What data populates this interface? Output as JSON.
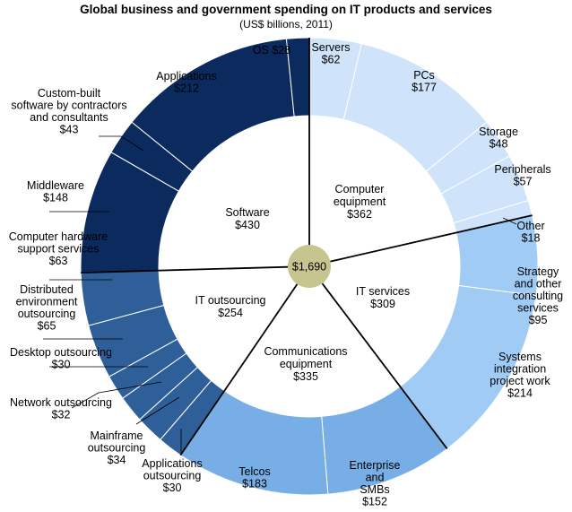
{
  "chart_data": {
    "type": "pie",
    "title": "Global business and government spending on IT products and services",
    "subtitle": "(US$ billions, 2011)",
    "total_label": "$1,690",
    "total": 1690,
    "inner_ring": [
      {
        "name": "Computer equipment",
        "value_label": "$362",
        "value": 362
      },
      {
        "name": "IT services",
        "value_label": "$309",
        "value": 309
      },
      {
        "name": "Communications equipment",
        "value_label": "$335",
        "value": 335
      },
      {
        "name": "IT outsourcing",
        "value_label": "$254",
        "value": 254
      },
      {
        "name": "Software",
        "value_label": "$430",
        "value": 430
      }
    ],
    "outer_ring": [
      {
        "name": "Servers",
        "value_label": "$62",
        "value": 62,
        "group": "Computer equipment"
      },
      {
        "name": "PCs",
        "value_label": "$177",
        "value": 177,
        "group": "Computer equipment"
      },
      {
        "name": "Storage",
        "value_label": "$48",
        "value": 48,
        "group": "Computer equipment"
      },
      {
        "name": "Peripherals",
        "value_label": "$57",
        "value": 57,
        "group": "Computer equipment"
      },
      {
        "name": "Other",
        "value_label": "$18",
        "value": 18,
        "group": "Computer equipment"
      },
      {
        "name": "Strategy and other consulting services",
        "value_label": "$95",
        "value": 95,
        "group": "IT services"
      },
      {
        "name": "Systems integration project work",
        "value_label": "$214",
        "value": 214,
        "group": "IT services"
      },
      {
        "name": "Enterprise and SMBs",
        "value_label": "$152",
        "value": 152,
        "group": "Communications equipment"
      },
      {
        "name": "Telcos",
        "value_label": "$183",
        "value": 183,
        "group": "Communications equipment"
      },
      {
        "name": "Applications outsourcing",
        "value_label": "$30",
        "value": 30,
        "group": "IT outsourcing"
      },
      {
        "name": "Mainframe outsourcing",
        "value_label": "$34",
        "value": 34,
        "group": "IT outsourcing"
      },
      {
        "name": "Network outsourcing",
        "value_label": "$32",
        "value": 32,
        "group": "IT outsourcing"
      },
      {
        "name": "Desktop outsourcing",
        "value_label": "$30",
        "value": 30,
        "group": "IT outsourcing"
      },
      {
        "name": "Distributed environment outsourcing",
        "value_label": "$65",
        "value": 65,
        "group": "IT outsourcing"
      },
      {
        "name": "Computer hardware support services",
        "value_label": "$63",
        "value": 63,
        "group": "IT outsourcing"
      },
      {
        "name": "Middleware",
        "value_label": "$148",
        "value": 148,
        "group": "Software"
      },
      {
        "name": "Custom-built software by contractors and consultants",
        "value_label": "$43",
        "value": 43,
        "group": "Software"
      },
      {
        "name": "Applications",
        "value_label": "$212",
        "value": 212,
        "group": "Software"
      },
      {
        "name": "OS",
        "value_label": "$28",
        "value": 28,
        "group": "Software"
      }
    ],
    "colors": {
      "Computer equipment": "#cfe4fa",
      "IT services": "#a0cbf5",
      "Communications equipment": "#78aee6",
      "IT outsourcing": "#2f5f98",
      "Software": "#0b2b5e",
      "total": "#c6c590"
    }
  }
}
